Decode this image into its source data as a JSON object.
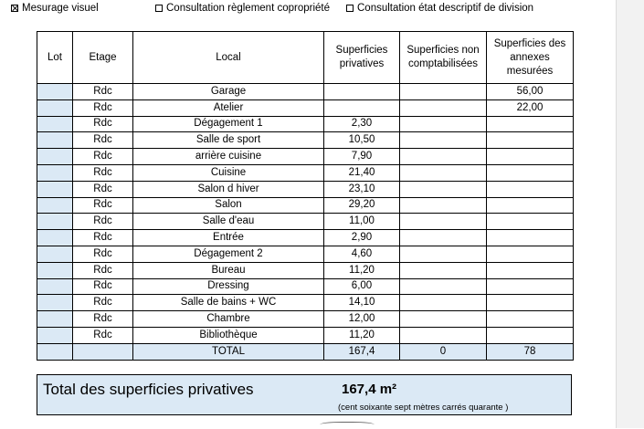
{
  "options": [
    {
      "label": "Mesurage visuel",
      "checked": true
    },
    {
      "label": "Consultation règlement copropriété",
      "checked": false
    },
    {
      "label": "Consultation état descriptif de division",
      "checked": false
    }
  ],
  "table": {
    "headers": {
      "lot": "Lot",
      "etage": "Etage",
      "local": "Local",
      "privatives": "Superficies privatives",
      "non_comptabilisees": "Superficies non comptabilisées",
      "annexes": "Superficies des annexes mesurées"
    },
    "rows": [
      {
        "lot": "",
        "etage": "Rdc",
        "local": "Garage",
        "privatives": "",
        "non_comptabilisees": "",
        "annexes": "56,00"
      },
      {
        "lot": "",
        "etage": "Rdc",
        "local": "Atelier",
        "privatives": "",
        "non_comptabilisees": "",
        "annexes": "22,00"
      },
      {
        "lot": "",
        "etage": "Rdc",
        "local": "Dégagement 1",
        "privatives": "2,30",
        "non_comptabilisees": "",
        "annexes": ""
      },
      {
        "lot": "",
        "etage": "Rdc",
        "local": "Salle de sport",
        "privatives": "10,50",
        "non_comptabilisees": "",
        "annexes": ""
      },
      {
        "lot": "",
        "etage": "Rdc",
        "local": "arrière cuisine",
        "privatives": "7,90",
        "non_comptabilisees": "",
        "annexes": ""
      },
      {
        "lot": "",
        "etage": "Rdc",
        "local": "Cuisine",
        "privatives": "21,40",
        "non_comptabilisees": "",
        "annexes": ""
      },
      {
        "lot": "",
        "etage": "Rdc",
        "local": "Salon d hiver",
        "privatives": "23,10",
        "non_comptabilisees": "",
        "annexes": ""
      },
      {
        "lot": "",
        "etage": "Rdc",
        "local": "Salon",
        "privatives": "29,20",
        "non_comptabilisees": "",
        "annexes": ""
      },
      {
        "lot": "",
        "etage": "Rdc",
        "local": "Salle d'eau",
        "privatives": "11,00",
        "non_comptabilisees": "",
        "annexes": ""
      },
      {
        "lot": "",
        "etage": "Rdc",
        "local": "Entrée",
        "privatives": "2,90",
        "non_comptabilisees": "",
        "annexes": ""
      },
      {
        "lot": "",
        "etage": "Rdc",
        "local": "Dégagement 2",
        "privatives": "4,60",
        "non_comptabilisees": "",
        "annexes": ""
      },
      {
        "lot": "",
        "etage": "Rdc",
        "local": "Bureau",
        "privatives": "11,20",
        "non_comptabilisees": "",
        "annexes": ""
      },
      {
        "lot": "",
        "etage": "Rdc",
        "local": "Dressing",
        "privatives": "6,00",
        "non_comptabilisees": "",
        "annexes": ""
      },
      {
        "lot": "",
        "etage": "Rdc",
        "local": "Salle de bains + WC",
        "privatives": "14,10",
        "non_comptabilisees": "",
        "annexes": ""
      },
      {
        "lot": "",
        "etage": "Rdc",
        "local": "Chambre",
        "privatives": "12,00",
        "non_comptabilisees": "",
        "annexes": ""
      },
      {
        "lot": "",
        "etage": "Rdc",
        "local": "Bibliothèque",
        "privatives": "11,20",
        "non_comptabilisees": "",
        "annexes": ""
      }
    ],
    "total": {
      "label": "TOTAL",
      "privatives": "167,4",
      "non_comptabilisees": "0",
      "annexes": "78"
    }
  },
  "summary": {
    "label": "Total des superficies privatives",
    "value": "167,4 m²",
    "in_words": "(cent soixante sept mètres carrés quarante  )"
  },
  "colors": {
    "cell_background": "#dbe9f5",
    "border": "#000000",
    "sidebar": "#f2f2f2"
  }
}
